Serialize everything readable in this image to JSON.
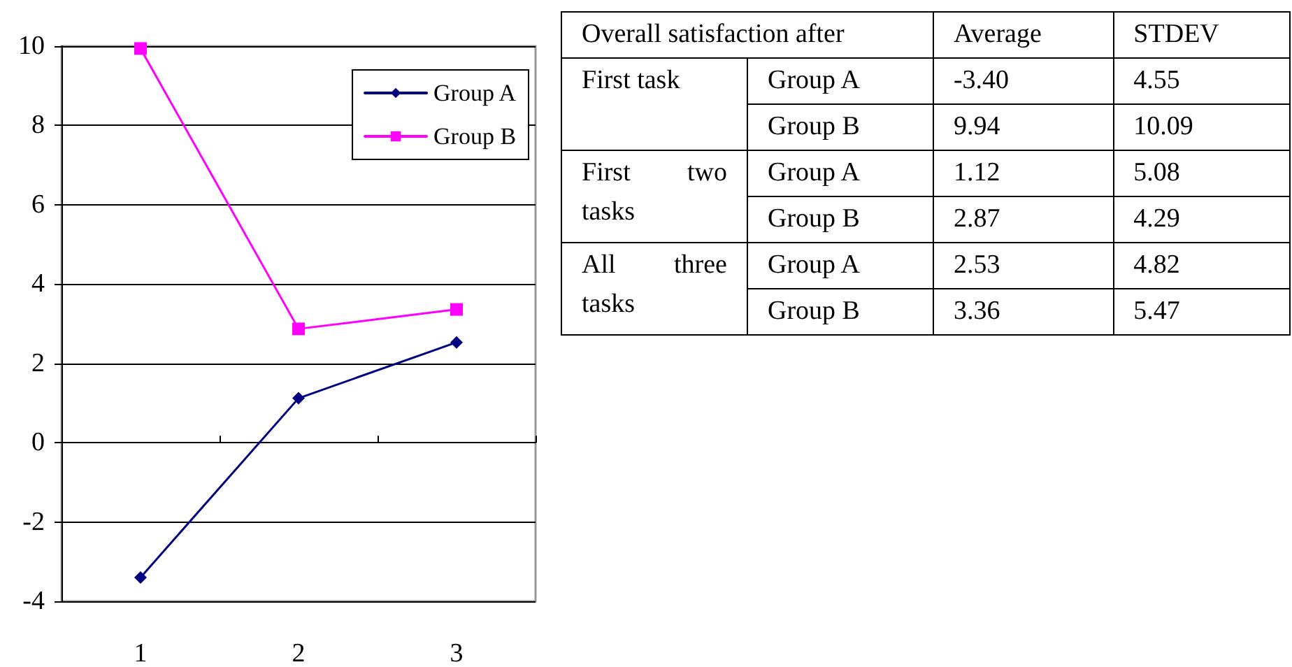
{
  "chart_data": [
    {
      "type": "line",
      "categories": [
        "1",
        "2",
        "3"
      ],
      "series": [
        {
          "name": "Group A",
          "color": "#000080",
          "marker": "diamond",
          "values": [
            -3.4,
            1.12,
            2.53
          ]
        },
        {
          "name": "Group B",
          "color": "#ff00ff",
          "marker": "square",
          "values": [
            9.94,
            2.87,
            3.36
          ]
        }
      ],
      "ylim": [
        -4,
        10
      ],
      "yticks": [
        -4,
        -2,
        0,
        2,
        4,
        6,
        8,
        10
      ],
      "grid": "y",
      "legend": "top right",
      "line_style": "solid"
    },
    {
      "type": "other",
      "annotations": [
        "Overall satisfaction after",
        "Average",
        "STDEV",
        "First task",
        "Group A",
        "-3.40",
        "4.55",
        "Group B",
        "9.94",
        "10.09",
        "First two tasks",
        "Group A",
        "1.12",
        "5.08",
        "Group B",
        "2.87",
        "4.29",
        "All three tasks",
        "Group A",
        "2.53",
        "4.82",
        "Group B",
        "3.36",
        "5.47"
      ]
    }
  ]
}
